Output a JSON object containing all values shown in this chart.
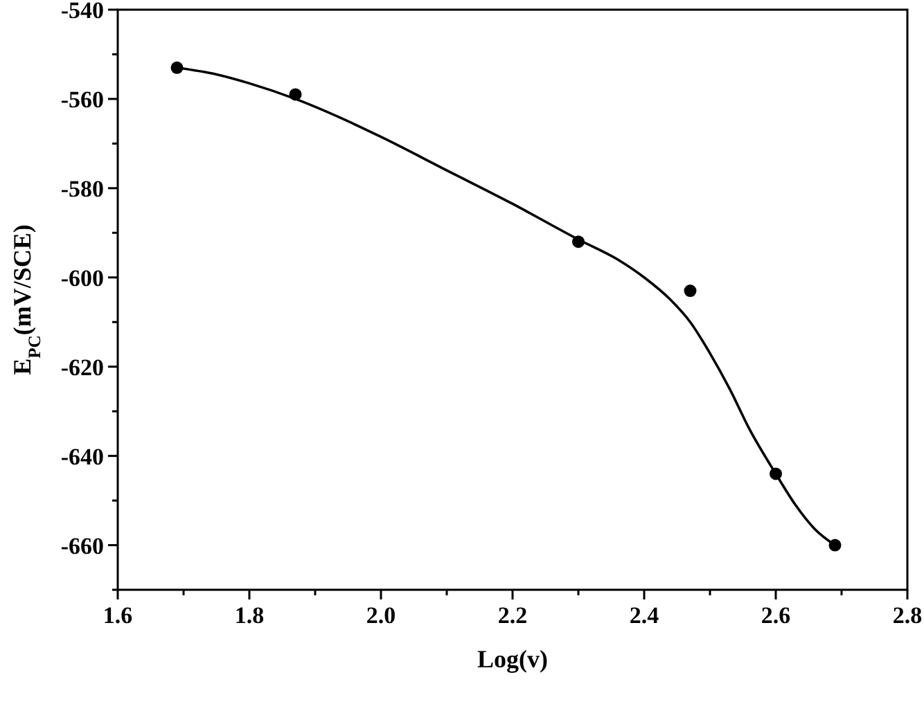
{
  "chart_data": {
    "type": "scatter",
    "xlabel": "Log(v)",
    "ylabel": "E$_{PC}$(mV/SCE)",
    "xlim": [
      1.6,
      2.8
    ],
    "ylim": [
      -670,
      -540
    ],
    "xticks": [
      1.6,
      {
        "value": 1.7,
        "label": null
      },
      1.8,
      {
        "value": 1.9,
        "label": null
      },
      {
        "value": 2,
        "label": "2.0"
      },
      {
        "value": 2.1,
        "label": null
      },
      2.2,
      {
        "value": 2.3,
        "label": null
      },
      2.4,
      {
        "value": 2.5,
        "label": null
      },
      2.6,
      {
        "value": 2.7,
        "label": null
      },
      2.8
    ],
    "yticks": [
      {
        "value": -670,
        "label": null
      },
      -660,
      {
        "value": -650,
        "label": null
      },
      -640,
      {
        "value": -630,
        "label": null
      },
      -620,
      {
        "value": -610,
        "label": null
      },
      -600,
      {
        "value": -590,
        "label": null
      },
      -580,
      {
        "value": -570,
        "label": null
      },
      -560,
      {
        "value": -550,
        "label": null
      },
      -540
    ],
    "series": [
      {
        "color": "#000000",
        "marker": "circle",
        "x": [
          1.69,
          1.87,
          2.3,
          2.47,
          2.6,
          2.69
        ],
        "values": [
          -553,
          -559,
          -592,
          -603,
          -644,
          -660
        ]
      },
      {
        "type": "line",
        "color": "#000000",
        "marker": "none",
        "line_style": "solid",
        "x": [
          1.69,
          1.75,
          1.8,
          1.87,
          1.95,
          2.0,
          2.1,
          2.2,
          2.3,
          2.36,
          2.4,
          2.44,
          2.47,
          2.5,
          2.53,
          2.56,
          2.6,
          2.63,
          2.66,
          2.69
        ],
        "values": [
          -553,
          -554.5,
          -556.5,
          -560,
          -565,
          -568.5,
          -576,
          -583.5,
          -591.5,
          -596,
          -600,
          -605,
          -610,
          -617,
          -625,
          -634,
          -644,
          -651,
          -656.5,
          -660
        ]
      }
    ]
  }
}
